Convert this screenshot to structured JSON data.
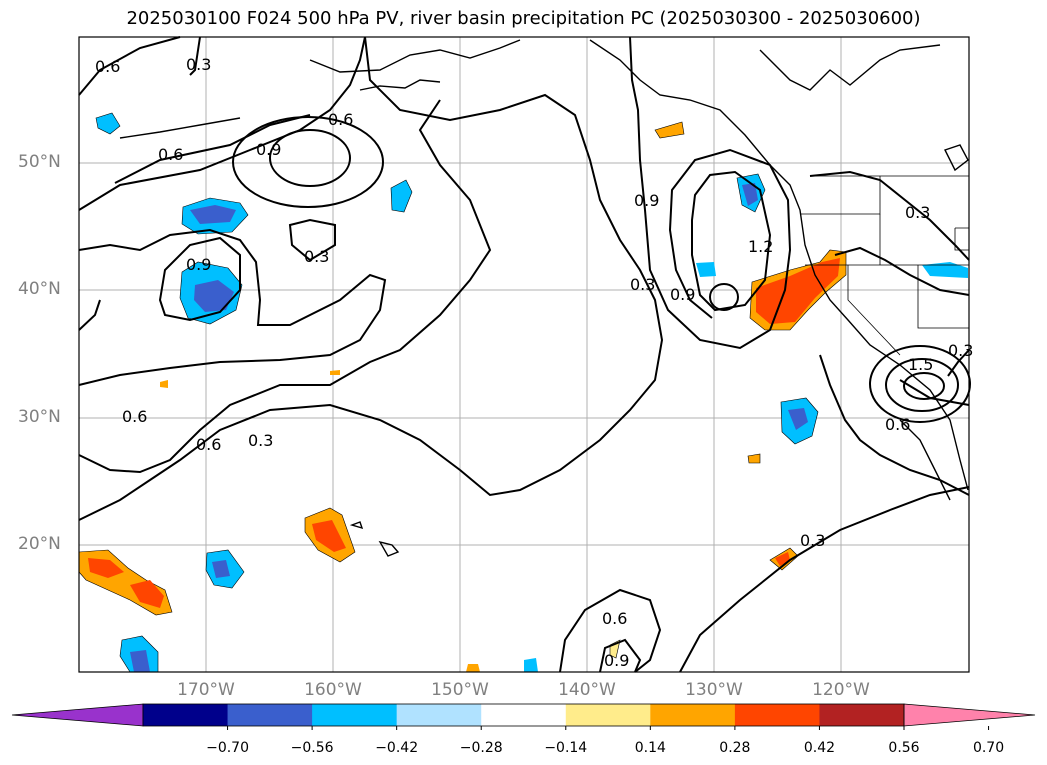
{
  "title": "2025030100 F024 500 hPa PV, river basin precipitation PC (2025030300 - 2025030600)",
  "lat_labels": [
    "50°N",
    "40°N",
    "30°N",
    "20°N"
  ],
  "lon_labels": [
    "170°W",
    "160°W",
    "150°W",
    "140°W",
    "130°W",
    "120°W"
  ],
  "contour_labels": [
    "0.6",
    "0.3",
    "0.6",
    "0.9",
    "0.6",
    "0.3",
    "0.9",
    "0.6",
    "0.3",
    "0.6",
    "0.3",
    "0.9",
    "1.2",
    "0.3",
    "0.9",
    "1.5",
    "0.3",
    "0.6",
    "0.3",
    "0.6",
    "0.9"
  ],
  "colorbar": {
    "ticks": [
      "−0.70",
      "−0.56",
      "−0.42",
      "−0.28",
      "−0.14",
      "0.14",
      "0.28",
      "0.42",
      "0.56",
      "0.70"
    ],
    "colors": [
      "#9932cc",
      "#00008b",
      "#3a5fcd",
      "#00bfff",
      "#b0e2ff",
      "#ffffff",
      "#ffec8b",
      "#ffa500",
      "#ff4500",
      "#b22222",
      "#ff82ab"
    ]
  }
}
